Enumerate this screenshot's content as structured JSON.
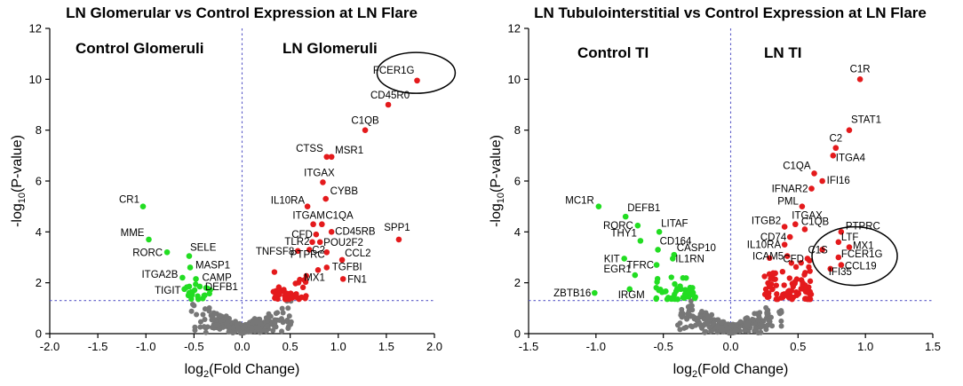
{
  "colors": {
    "up": "#e41a1c",
    "down": "#22dd22",
    "ns": "#777777",
    "threshold": "#5c5cc8"
  },
  "chart_data": [
    {
      "type": "scatter",
      "title": "LN Glomerular vs Control Expression at LN Flare",
      "left_label": "Control Glomeruli",
      "right_label": "LN Glomeruli",
      "xlabel": {
        "pre": "log",
        "sub": "2",
        "post": "(Fold Change)"
      },
      "ylabel": {
        "pre": "-log",
        "sub": "10",
        "post": "(P-value)"
      },
      "xlim": [
        -2.0,
        2.0
      ],
      "ylim": [
        0,
        12
      ],
      "xticks": [
        "-2.0",
        "-1.5",
        "-1.0",
        "-0.5",
        "0.0",
        "0.5",
        "1.0",
        "1.5",
        "2.0"
      ],
      "yticks": [
        "0",
        "2",
        "4",
        "6",
        "8",
        "10",
        "12"
      ],
      "pvalue_threshold": 1.3,
      "circled_gene": "FCER1G",
      "labeled_up": [
        {
          "gene": "FCER1G",
          "x": 1.82,
          "y": 9.95
        },
        {
          "gene": "CD45R0",
          "x": 1.52,
          "y": 9.0
        },
        {
          "gene": "C1QB",
          "x": 1.28,
          "y": 8.0
        },
        {
          "gene": "CTSS",
          "x": 0.88,
          "y": 6.95
        },
        {
          "gene": "MSR1",
          "x": 0.93,
          "y": 6.95
        },
        {
          "gene": "ITGAX",
          "x": 0.84,
          "y": 5.95
        },
        {
          "gene": "CYBB",
          "x": 0.87,
          "y": 5.3
        },
        {
          "gene": "IL10RA",
          "x": 0.68,
          "y": 5.0
        },
        {
          "gene": "ITGAM",
          "x": 0.74,
          "y": 4.3
        },
        {
          "gene": "C1QA",
          "x": 0.83,
          "y": 4.3
        },
        {
          "gene": "CD45RB",
          "x": 0.93,
          "y": 4.0
        },
        {
          "gene": "CFD",
          "x": 0.77,
          "y": 3.9
        },
        {
          "gene": "TLR2",
          "x": 0.73,
          "y": 3.6
        },
        {
          "gene": "POU2F2",
          "x": 0.81,
          "y": 3.6
        },
        {
          "gene": "TNFSF8",
          "x": 0.58,
          "y": 3.25
        },
        {
          "gene": "C2",
          "x": 0.7,
          "y": 3.3
        },
        {
          "gene": "CCL2",
          "x": 1.04,
          "y": 2.9
        },
        {
          "gene": "PTPRC",
          "x": 0.88,
          "y": 3.2
        },
        {
          "gene": "TGFBI",
          "x": 0.88,
          "y": 2.6
        },
        {
          "gene": "MX1",
          "x": 0.79,
          "y": 2.5
        },
        {
          "gene": "FN1",
          "x": 1.05,
          "y": 2.15
        },
        {
          "gene": "SPP1",
          "x": 1.63,
          "y": 3.7
        }
      ],
      "labeled_down": [
        {
          "gene": "CR1",
          "x": -1.03,
          "y": 5.0
        },
        {
          "gene": "MME",
          "x": -0.97,
          "y": 3.7
        },
        {
          "gene": "RORC",
          "x": -0.78,
          "y": 3.2
        },
        {
          "gene": "SELE",
          "x": -0.55,
          "y": 3.05
        },
        {
          "gene": "MASP1",
          "x": -0.54,
          "y": 2.6
        },
        {
          "gene": "CAMP",
          "x": -0.48,
          "y": 2.15
        },
        {
          "gene": "ITGA2B",
          "x": -0.62,
          "y": 2.2
        },
        {
          "gene": "DEFB1",
          "x": -0.44,
          "y": 1.85
        },
        {
          "gene": "TIGIT",
          "x": -0.6,
          "y": 1.75
        }
      ]
    },
    {
      "type": "scatter",
      "title": "LN Tubulointerstitial vs Control Expression at LN Flare",
      "left_label": "Control TI",
      "right_label": "LN TI",
      "xlabel": {
        "pre": "log",
        "sub": "2",
        "post": "(Fold Change)"
      },
      "ylabel": {
        "pre": "-log",
        "sub": "10",
        "post": "(P-value)"
      },
      "xlim": [
        -1.5,
        1.5
      ],
      "ylim": [
        0,
        12
      ],
      "xticks": [
        "-1.5",
        "-1.0",
        "-0.5",
        "0.0",
        "0.5",
        "1.0",
        "1.5"
      ],
      "yticks": [
        "0",
        "2",
        "4",
        "6",
        "8",
        "10",
        "12"
      ],
      "pvalue_threshold": 1.3,
      "circled_gene": "FCER1G",
      "labeled_up": [
        {
          "gene": "C1R",
          "x": 0.96,
          "y": 10.0
        },
        {
          "gene": "STAT1",
          "x": 0.88,
          "y": 8.0
        },
        {
          "gene": "C2",
          "x": 0.78,
          "y": 7.3
        },
        {
          "gene": "ITGA4",
          "x": 0.76,
          "y": 7.0
        },
        {
          "gene": "C1QA",
          "x": 0.62,
          "y": 6.3
        },
        {
          "gene": "IFI16",
          "x": 0.68,
          "y": 6.0
        },
        {
          "gene": "IFNAR2",
          "x": 0.6,
          "y": 5.7
        },
        {
          "gene": "PML",
          "x": 0.53,
          "y": 5.0
        },
        {
          "gene": "ITGAX",
          "x": 0.48,
          "y": 4.3
        },
        {
          "gene": "ITGB2",
          "x": 0.4,
          "y": 4.2
        },
        {
          "gene": "C1QB",
          "x": 0.55,
          "y": 4.1
        },
        {
          "gene": "PTPRC",
          "x": 0.82,
          "y": 4.0
        },
        {
          "gene": "CD74",
          "x": 0.44,
          "y": 3.8
        },
        {
          "gene": "IL10RA",
          "x": 0.4,
          "y": 3.5
        },
        {
          "gene": "LTF",
          "x": 0.8,
          "y": 3.6
        },
        {
          "gene": "C1S",
          "x": 0.68,
          "y": 3.3
        },
        {
          "gene": "MX1",
          "x": 0.88,
          "y": 3.4
        },
        {
          "gene": "ICAM5",
          "x": 0.42,
          "y": 3.05
        },
        {
          "gene": "CFD",
          "x": 0.57,
          "y": 2.95
        },
        {
          "gene": "FCER1G",
          "x": 0.8,
          "y": 3.0
        },
        {
          "gene": "CCL19",
          "x": 0.82,
          "y": 2.7
        },
        {
          "gene": "IFI35",
          "x": 0.74,
          "y": 2.55
        }
      ],
      "labeled_down": [
        {
          "gene": "MC1R",
          "x": -0.98,
          "y": 5.0
        },
        {
          "gene": "DEFB1",
          "x": -0.78,
          "y": 4.6
        },
        {
          "gene": "RORC",
          "x": -0.69,
          "y": 4.25
        },
        {
          "gene": "LITAF",
          "x": -0.53,
          "y": 4.0
        },
        {
          "gene": "THY1",
          "x": -0.67,
          "y": 3.65
        },
        {
          "gene": "CD164",
          "x": -0.54,
          "y": 3.3
        },
        {
          "gene": "KIT",
          "x": -0.79,
          "y": 2.95
        },
        {
          "gene": "TFRC",
          "x": -0.55,
          "y": 2.7
        },
        {
          "gene": "CASP10",
          "x": -0.42,
          "y": 3.1
        },
        {
          "gene": "IL1RN",
          "x": -0.43,
          "y": 2.95
        },
        {
          "gene": "EGR1",
          "x": -0.71,
          "y": 2.3
        },
        {
          "gene": "ZBTB16",
          "x": -1.01,
          "y": 1.6
        },
        {
          "gene": "IRGM",
          "x": -0.75,
          "y": 1.75
        }
      ]
    }
  ]
}
